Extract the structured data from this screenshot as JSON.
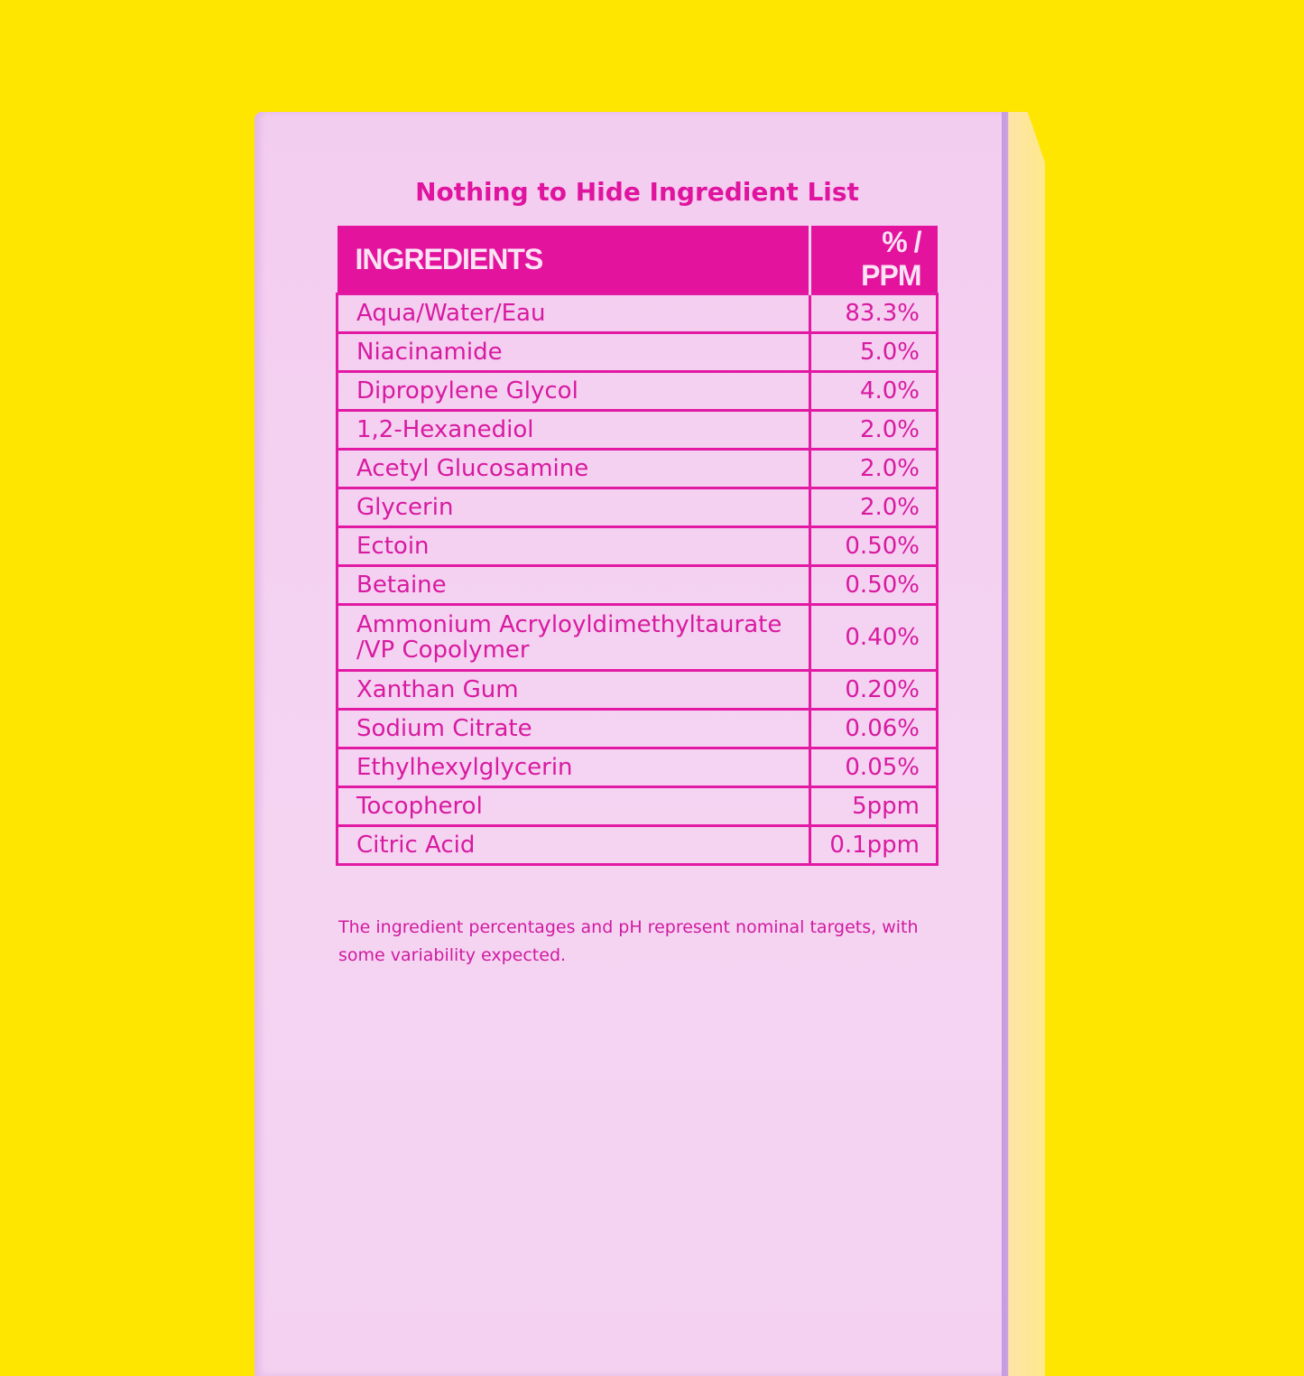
{
  "title": "Nothing to Hide Ingredient List",
  "table": {
    "headers": [
      "INGREDIENTS",
      "% / PPM"
    ],
    "rows": [
      {
        "name": "Aqua/Water/Eau",
        "value": "83.3%"
      },
      {
        "name": "Niacinamide",
        "value": "5.0%"
      },
      {
        "name": "Dipropylene Glycol",
        "value": "4.0%"
      },
      {
        "name": "1,2-Hexanediol",
        "value": "2.0%"
      },
      {
        "name": "Acetyl Glucosamine",
        "value": "2.0%"
      },
      {
        "name": "Glycerin",
        "value": "2.0%"
      },
      {
        "name": "Ectoin",
        "value": "0.50%"
      },
      {
        "name": "Betaine",
        "value": "0.50%"
      },
      {
        "name": "Ammonium Acryloyldimethyltaurate /VP Copolymer",
        "value": "0.40%"
      },
      {
        "name": "Xanthan Gum",
        "value": "0.20%"
      },
      {
        "name": "Sodium Citrate",
        "value": "0.06%"
      },
      {
        "name": "Ethylhexylglycerin",
        "value": "0.05%"
      },
      {
        "name": "Tocopherol",
        "value": "5ppm"
      },
      {
        "name": "Citric Acid",
        "value": "0.1ppm"
      }
    ]
  },
  "note": "The ingredient percentages and pH represent nominal targets, with some variability expected.",
  "colors": {
    "background": "#ffe600",
    "box": "#f5d4f2",
    "accent": "#e3139e"
  }
}
